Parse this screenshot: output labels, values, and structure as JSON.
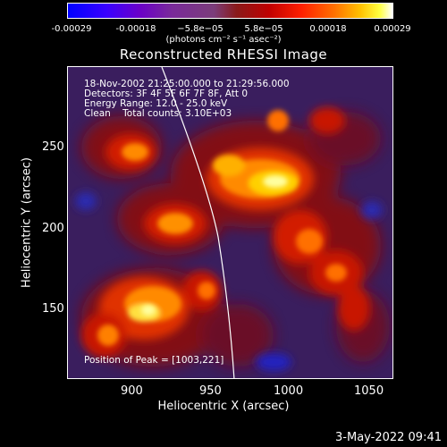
{
  "colorbar": {
    "ticks": [
      "-0.00029",
      "-0.00018",
      "−5.8e−05",
      "5.8e−05",
      "0.00018",
      "0.00029"
    ],
    "units": "(photons cm⁻² s⁻¹ asec⁻²)"
  },
  "title": "Reconstructed RHESSI Image",
  "info": {
    "time": "18-Nov-2002 21:25:00.000 to 21:29:56.000",
    "detectors": "Detectors: 3F 4F 5F 6F 7F 8F, Att 0",
    "energy": "Energy Range: 12.0 - 25.0 keV",
    "clean": "Clean    Total counts: 3.10E+03",
    "peak": "Position of Peak = [1003,221]"
  },
  "axes": {
    "x_label": "Heliocentric X (arcsec)",
    "y_label": "Heliocentric Y (arcsec)",
    "x_ticks": [
      "900",
      "950",
      "1000",
      "1050"
    ],
    "y_ticks": [
      "250",
      "200",
      "150"
    ]
  },
  "timestamp": "3-May-2022 09:41",
  "colors": {
    "background": "#000000",
    "foreground": "#ffffff",
    "image_base": "#3a1e5e"
  }
}
